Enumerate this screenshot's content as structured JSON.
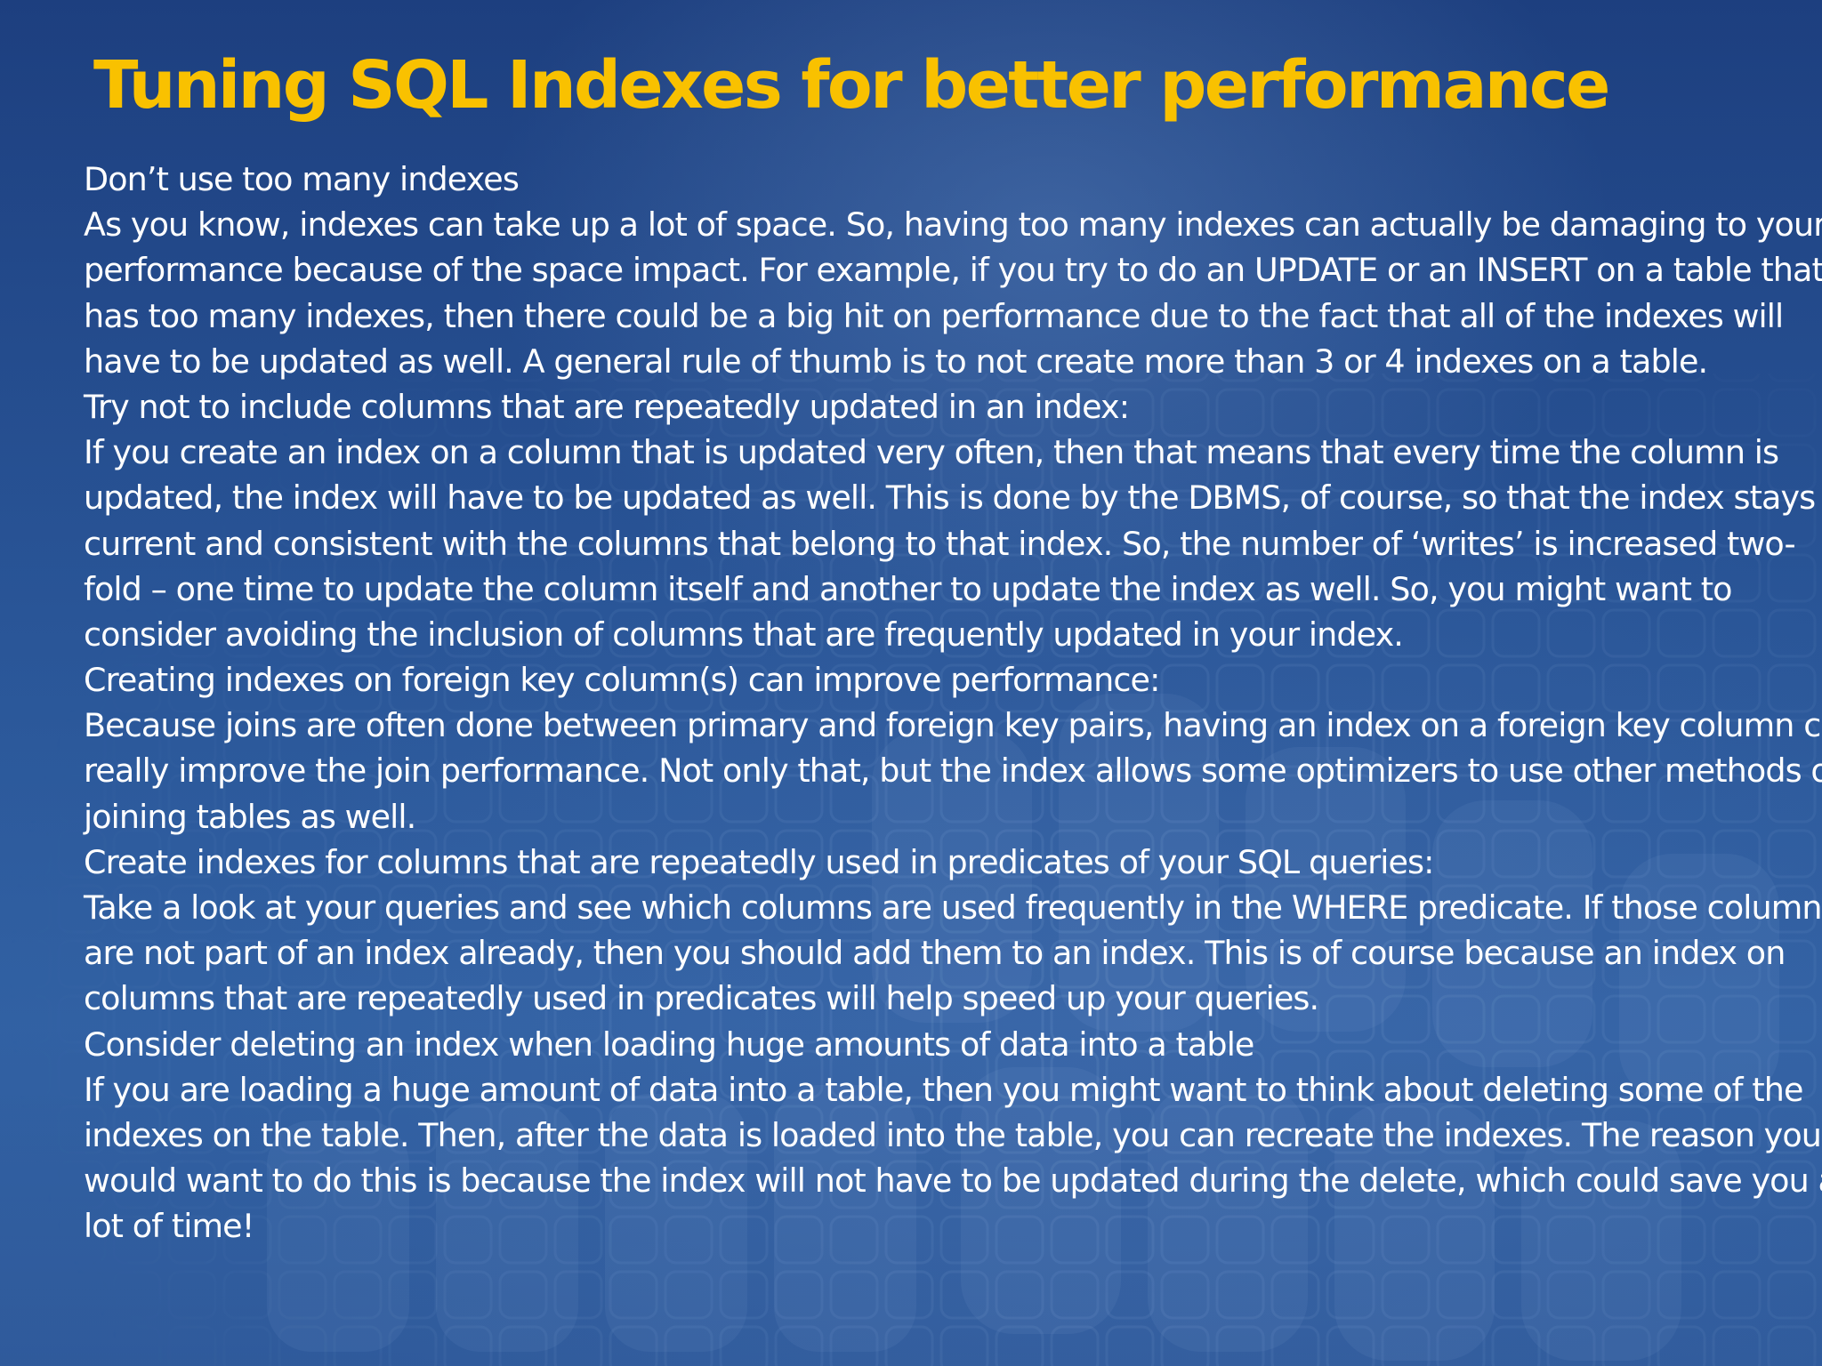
{
  "slide": {
    "title": "Tuning SQL Indexes for better performance",
    "lines": [
      "Don’t use too many indexes",
      "As you know, indexes can take up a lot of space. So, having too many indexes can actually be damaging to your",
      "performance because of the space impact. For example, if you try to do an UPDATE or an INSERT on a table that",
      "has too many indexes, then there could be a big hit on performance due to the fact that all of the indexes will",
      "have to be updated as well. A general rule of thumb is to not create more than 3 or 4 indexes on a table.",
      "Try not to include columns that are repeatedly updated in an index:",
      "If you create an index on a column that is updated very often, then that means that every time the column is",
      "updated, the index will have to be updated as well. This is done by the DBMS, of course, so that the index stays",
      "current and consistent with the columns that belong to that index. So, the number of ‘writes’ is increased two-",
      "fold – one time to update the column itself and another to update the index as well. So, you might want to",
      "consider avoiding the inclusion of columns that are frequently updated in your index.",
      "Creating indexes on foreign key column(s) can improve performance:",
      "Because joins are often done between primary and foreign key pairs, having an index on a foreign key column can",
      "really improve the join performance. Not only that, but the index allows some optimizers to use other methods of",
      "joining tables as well.",
      "Create indexes for columns that are repeatedly used in predicates of your SQL queries:",
      "Take a look at your queries and see which columns are used frequently in the WHERE predicate. If those columns",
      "are not part of an index already, then you should add them to an index. This is of course because an index on",
      "columns that are repeatedly used in predicates will help speed up your queries.",
      "Consider deleting an index when loading huge amounts of data into a table",
      "If you are loading a huge amount of data into a table, then you might want to think about deleting some of the",
      "indexes on the table. Then, after the data is loaded into the table, you can recreate the indexes. The reason you",
      "would want to do this is because the index will not have to be updated during the delete, which could save you a",
      "lot of time!"
    ]
  },
  "colors": {
    "title": "#f9c100",
    "text": "#ffffff",
    "background": "#1d4487"
  }
}
